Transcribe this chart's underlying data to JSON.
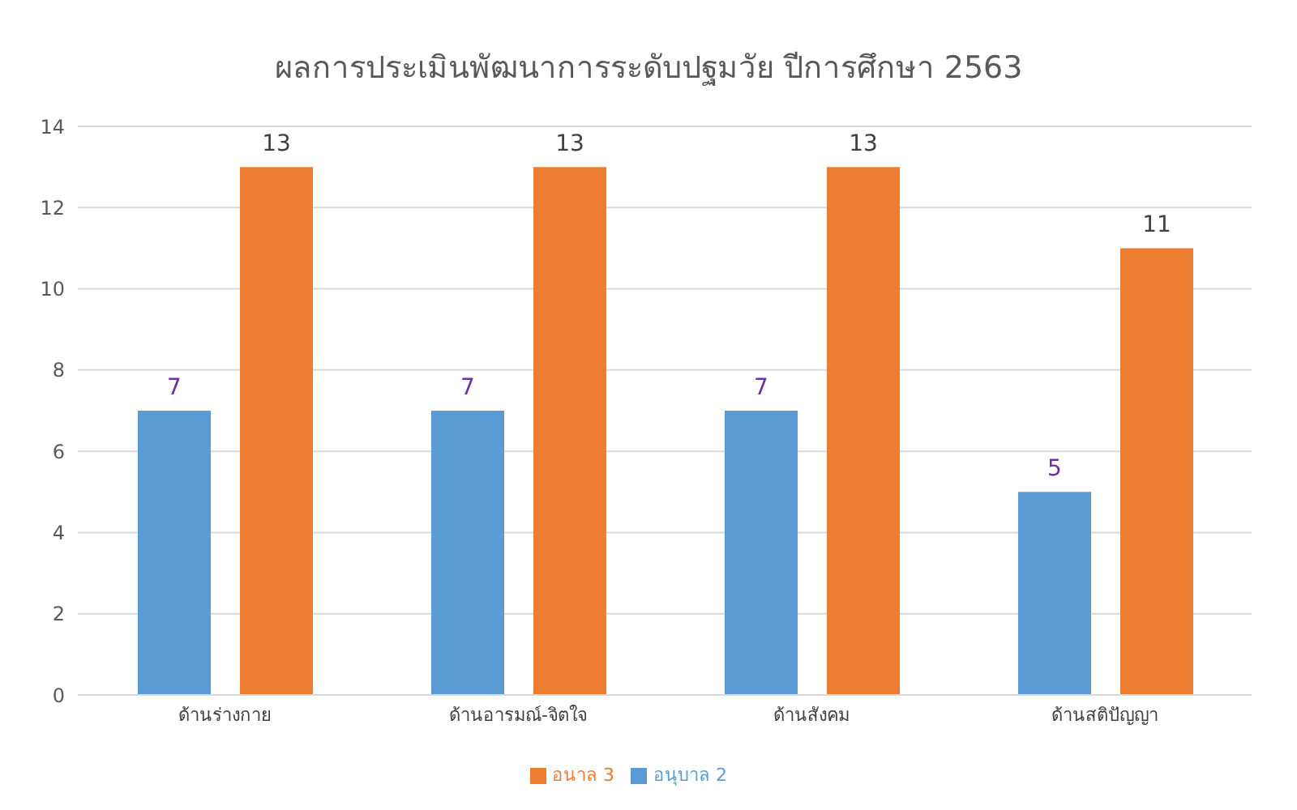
{
  "chart_data": {
    "type": "bar",
    "title": "ผลการประเมินพัฒนาการระดับปฐมวัย  ปีการศึกษา 2563",
    "categories": [
      "ด้านร่างกาย",
      "ด้านอารมณ์-จิตใจ",
      "ด้านสังคม",
      "ด้านสติปัญญา"
    ],
    "series": [
      {
        "name": "อนุบาล 2",
        "color": "#5b9bd5",
        "values": [
          7,
          7,
          7,
          5
        ]
      },
      {
        "name": "อนาล 3",
        "color": "#ed7d31",
        "values": [
          13,
          13,
          13,
          11
        ]
      }
    ],
    "ylim": [
      0,
      14
    ],
    "yticks": [
      0,
      2,
      4,
      6,
      8,
      10,
      12,
      14
    ],
    "grid": "y",
    "legend": "bottom",
    "data_labels": true
  }
}
